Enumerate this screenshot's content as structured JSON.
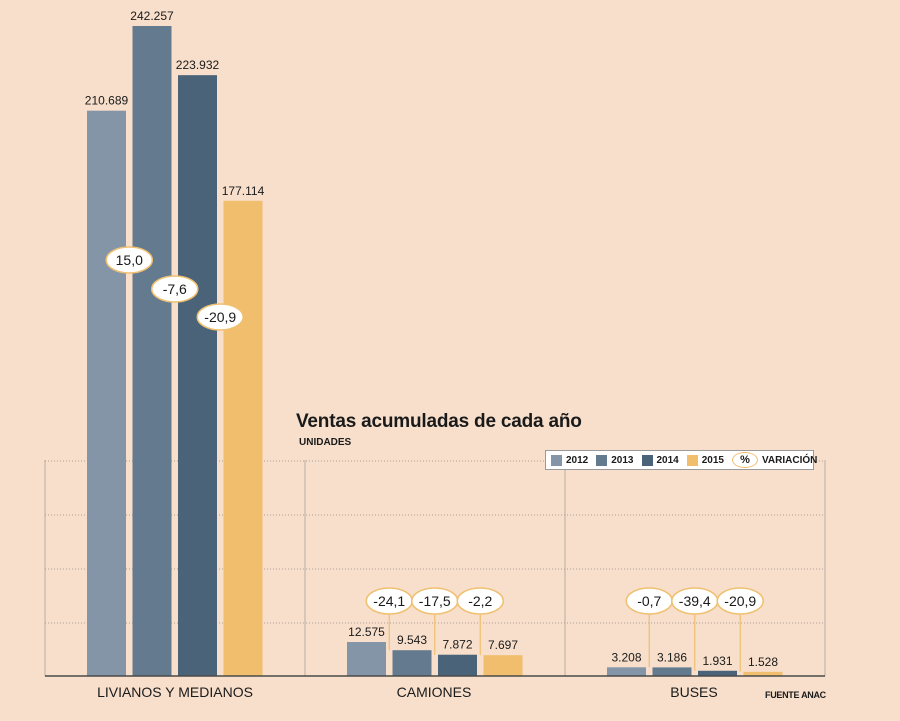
{
  "title": "Ventas acumuladas de cada año",
  "subtitle": "UNIDADES",
  "source": "FUENTE ANAC",
  "legend": {
    "items": [
      {
        "label": "2012",
        "color": "#8395a6"
      },
      {
        "label": "2013",
        "color": "#637a8f"
      },
      {
        "label": "2014",
        "color": "#4a6378"
      },
      {
        "label": "2015",
        "color": "#f0be6c"
      }
    ],
    "variation_symbol": "%",
    "variation_label": "VARIACIÓN"
  },
  "chart_data": {
    "type": "bar",
    "title": "Ventas acumuladas de cada año",
    "ylabel": "UNIDADES",
    "categories": [
      "LIVIANOS Y MEDIANOS",
      "CAMIONES",
      "BUSES"
    ],
    "series": [
      {
        "name": "2012",
        "color": "#8395a6",
        "values": [
          210689,
          12575,
          3208
        ],
        "labels": [
          "210.689",
          "12.575",
          "3.208"
        ]
      },
      {
        "name": "2013",
        "color": "#637a8f",
        "values": [
          242257,
          9543,
          3186
        ],
        "labels": [
          "242.257",
          "9.543",
          "3.186"
        ]
      },
      {
        "name": "2014",
        "color": "#4a6378",
        "values": [
          223932,
          7872,
          1931
        ],
        "labels": [
          "223.932",
          "7.872",
          "1.931"
        ]
      },
      {
        "name": "2015",
        "color": "#f0be6c",
        "values": [
          177114,
          7697,
          1528
        ],
        "labels": [
          "177.114",
          "7.697",
          "1.528"
        ]
      }
    ],
    "variation_pct": [
      [
        "15,0",
        "-7,6",
        "-20,9"
      ],
      [
        "-24,1",
        "-17,5",
        "-2,2"
      ],
      [
        "-0,7",
        "-39,4",
        "-20,9"
      ]
    ],
    "grid": true,
    "legend_position": "right"
  }
}
